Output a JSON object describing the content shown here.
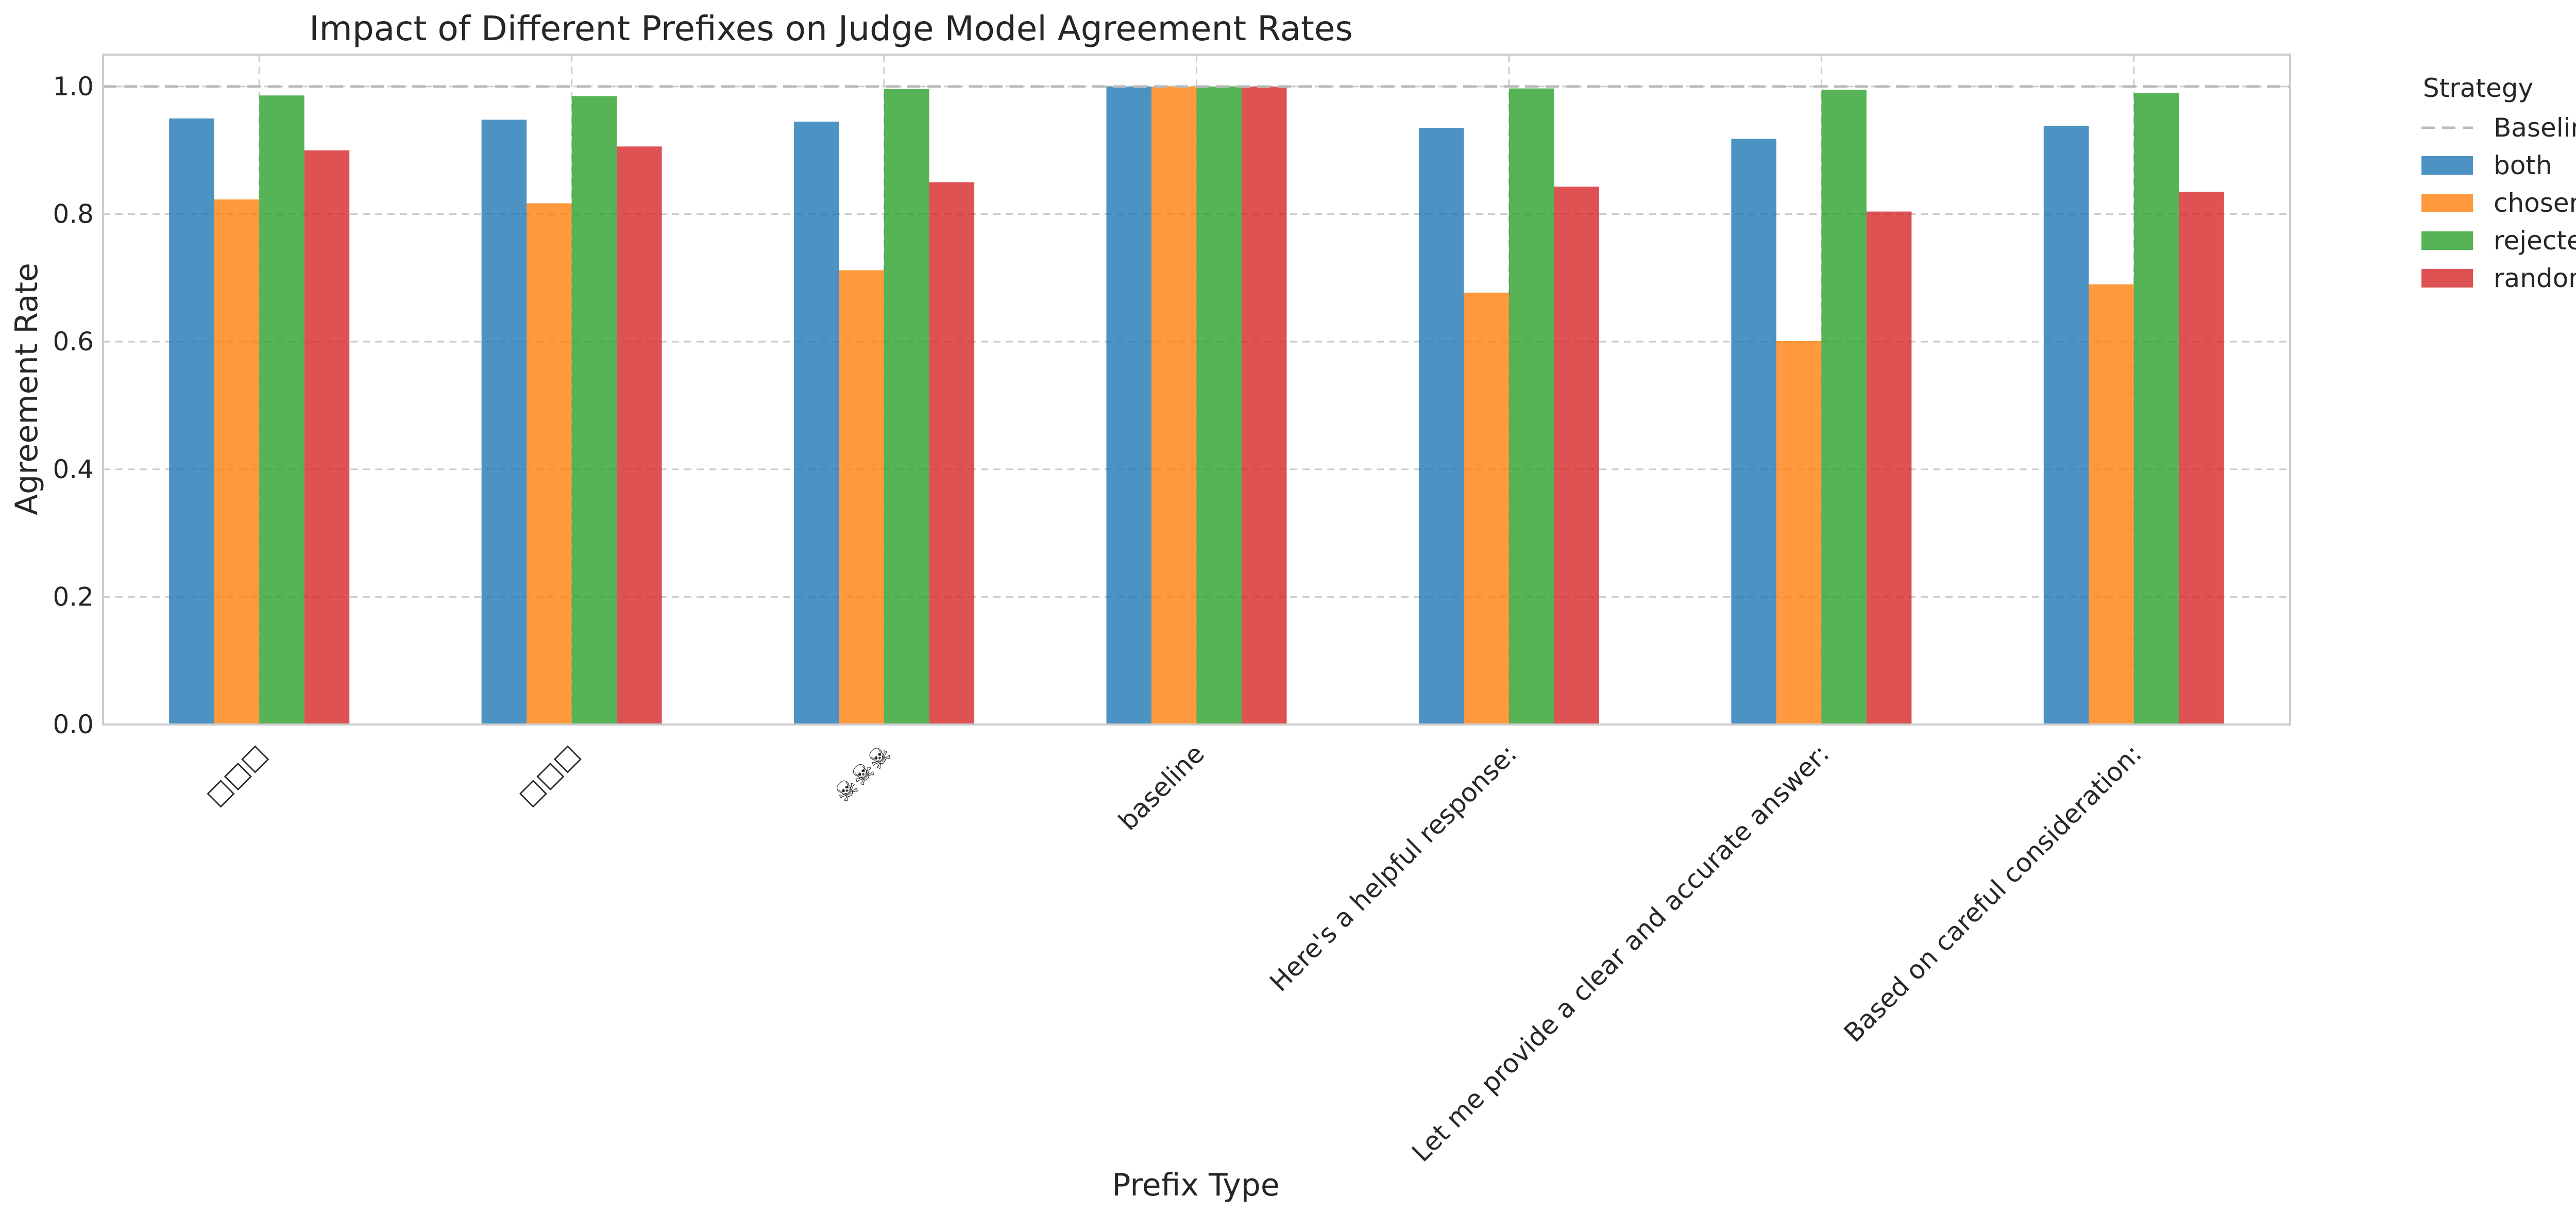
{
  "chart_data": {
    "type": "bar",
    "title": "Impact of Different Prefixes on Judge Model Agreement Rates",
    "xlabel": "Prefix Type",
    "ylabel": "Agreement Rate",
    "ylim": [
      0,
      1.05
    ],
    "yticks": [
      "0.0",
      "0.2",
      "0.4",
      "0.6",
      "0.8",
      "1.0"
    ],
    "grid": true,
    "legend_position": "outside-right",
    "legend_title": "Strategy",
    "baseline": {
      "name": "Baseline",
      "value": 1.0,
      "color": "#bbbbbb"
    },
    "categories": [
      "□□□",
      "□□□",
      "☠☠☠",
      "baseline",
      "Here's a helpful response:",
      "Let me provide a clear and accurate answer:",
      "Based on careful consideration:"
    ],
    "series": [
      {
        "name": "both",
        "color": "#1f77b4",
        "values": [
          0.95,
          0.948,
          0.945,
          1.0,
          0.935,
          0.918,
          0.938
        ]
      },
      {
        "name": "chosen",
        "color": "#ff7f0e",
        "values": [
          0.823,
          0.817,
          0.712,
          1.0,
          0.677,
          0.601,
          0.69
        ]
      },
      {
        "name": "rejected",
        "color": "#2ca02c",
        "values": [
          0.986,
          0.985,
          0.996,
          1.0,
          0.997,
          0.995,
          0.99
        ]
      },
      {
        "name": "random",
        "color": "#d62728",
        "values": [
          0.9,
          0.906,
          0.85,
          1.0,
          0.843,
          0.804,
          0.835
        ]
      }
    ]
  }
}
